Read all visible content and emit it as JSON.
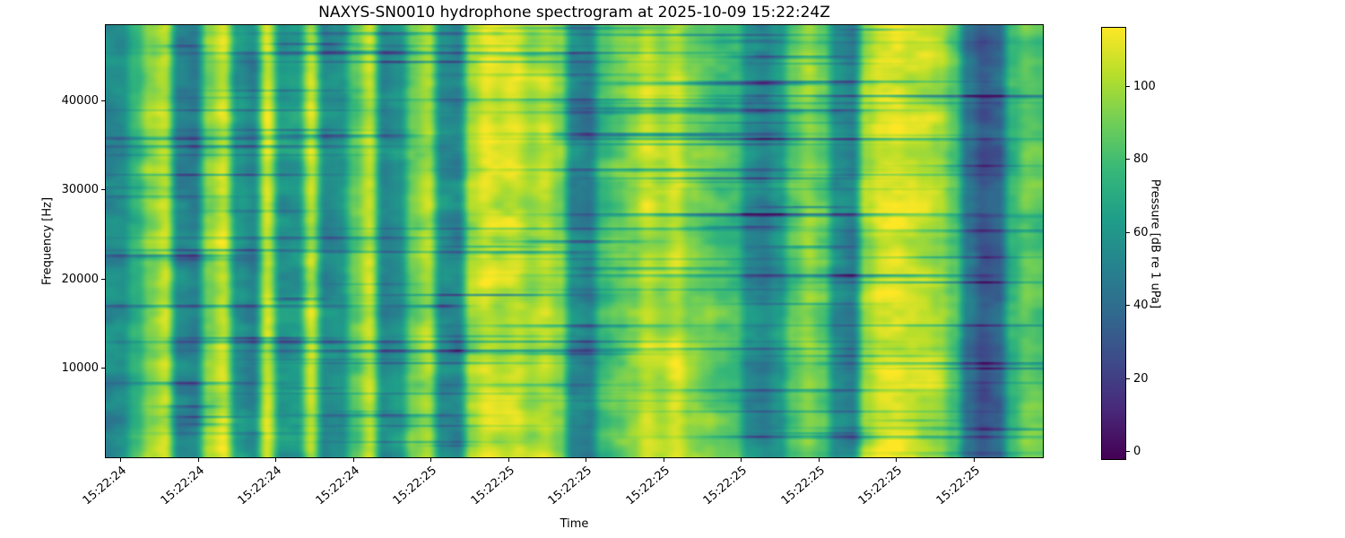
{
  "chart_data": {
    "type": "heatmap",
    "title": "NAXYS-SN0010 hydrophone spectrogram at 2025-10-09 15:22:24Z",
    "xlabel": "Time",
    "ylabel": "Frequency [Hz]",
    "x_tick_labels": [
      "15:22:24",
      "15:22:24",
      "15:22:24",
      "15:22:24",
      "15:22:25",
      "15:22:25",
      "15:22:25",
      "15:22:25",
      "15:22:25",
      "15:22:25",
      "15:22:25",
      "15:22:25"
    ],
    "y_tick_values": [
      10000,
      20000,
      30000,
      40000
    ],
    "y_range_hz": [
      0,
      48500
    ],
    "grid": false,
    "legend": "none",
    "colorbar": {
      "label": "Pressure [dB re 1 uPa]",
      "ticks": [
        0,
        20,
        40,
        60,
        80,
        100
      ],
      "vmin": -2,
      "vmax": 116,
      "colormap": "viridis"
    },
    "time_envelope_db": [
      52,
      55,
      75,
      95,
      105,
      52,
      50,
      95,
      108,
      60,
      52,
      108,
      60,
      62,
      105,
      55,
      58,
      85,
      105,
      55,
      60,
      90,
      100,
      55,
      52,
      100,
      110,
      105,
      108,
      100,
      105,
      95,
      55,
      50,
      80,
      88,
      95,
      105,
      100,
      108,
      95,
      90,
      85,
      80,
      55,
      50,
      60,
      85,
      95,
      85,
      55,
      50,
      100,
      110,
      112,
      108,
      105,
      100,
      85,
      45,
      30,
      35,
      75,
      88,
      85
    ],
    "texture": {
      "seed": 11,
      "coarse_amp_db": 9,
      "fine_amp_db": 4,
      "row_line_count": 130
    }
  },
  "colors": {
    "viridis_stops": [
      "#440154",
      "#482878",
      "#3e4989",
      "#31688e",
      "#26828e",
      "#1f9e89",
      "#35b779",
      "#6ece58",
      "#b5de2b",
      "#fde725"
    ],
    "text": "#000000",
    "background": "#ffffff"
  }
}
